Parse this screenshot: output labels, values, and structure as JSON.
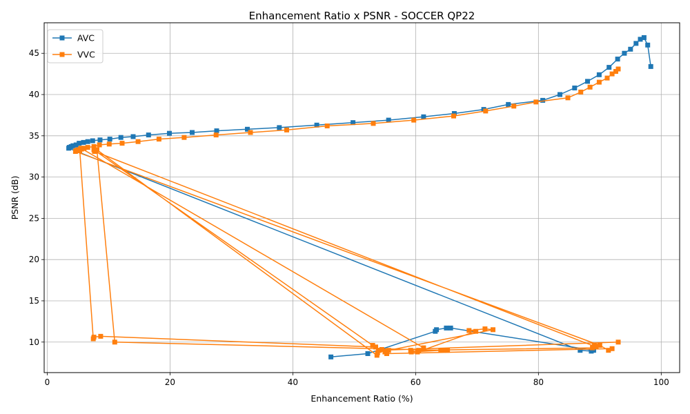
{
  "chart_data": {
    "type": "line",
    "title": "Enhancement Ratio x PSNR - SOCCER QP22",
    "xlabel": "Enhancement Ratio (%)",
    "ylabel": "PSNR (dB)",
    "xlim": [
      -0.5,
      103
    ],
    "ylim": [
      6.3,
      48.7
    ],
    "xticks": [
      0,
      20,
      40,
      60,
      80,
      100
    ],
    "yticks": [
      10,
      15,
      20,
      25,
      30,
      35,
      40,
      45
    ],
    "grid": true,
    "legend_position": "top-left",
    "marker": "square",
    "series": [
      {
        "name": "AVC",
        "color": "#1f77b4",
        "points": [
          [
            98.3,
            43.4
          ],
          [
            97.8,
            46.0
          ],
          [
            97.2,
            46.9
          ],
          [
            96.6,
            46.7
          ],
          [
            95.9,
            46.2
          ],
          [
            95.0,
            45.5
          ],
          [
            94.0,
            45.0
          ],
          [
            92.9,
            44.3
          ],
          [
            91.5,
            43.3
          ],
          [
            89.9,
            42.4
          ],
          [
            88.0,
            41.6
          ],
          [
            85.9,
            40.8
          ],
          [
            83.5,
            40.0
          ],
          [
            80.7,
            39.3
          ],
          [
            75.1,
            38.8
          ],
          [
            71.1,
            38.2
          ],
          [
            66.3,
            37.7
          ],
          [
            61.3,
            37.3
          ],
          [
            55.6,
            36.9
          ],
          [
            49.8,
            36.6
          ],
          [
            43.9,
            36.3
          ],
          [
            37.8,
            36.0
          ],
          [
            32.6,
            35.8
          ],
          [
            27.6,
            35.6
          ],
          [
            23.6,
            35.4
          ],
          [
            19.9,
            35.3
          ],
          [
            16.5,
            35.1
          ],
          [
            14.0,
            34.9
          ],
          [
            12.0,
            34.8
          ],
          [
            10.2,
            34.6
          ],
          [
            8.6,
            34.5
          ],
          [
            7.4,
            34.4
          ],
          [
            6.6,
            34.3
          ],
          [
            5.9,
            34.2
          ],
          [
            5.2,
            34.1
          ],
          [
            4.7,
            33.9
          ],
          [
            4.2,
            33.8
          ],
          [
            3.9,
            33.7
          ],
          [
            3.6,
            33.6
          ],
          [
            3.5,
            33.5
          ],
          [
            86.8,
            9.0
          ],
          [
            88.6,
            8.9
          ],
          [
            89.0,
            9.0
          ],
          [
            65.7,
            11.7
          ],
          [
            65.0,
            11.7
          ],
          [
            63.4,
            11.5
          ],
          [
            63.2,
            11.3
          ],
          [
            52.2,
            8.6
          ],
          [
            46.2,
            8.2
          ]
        ]
      },
      {
        "name": "VVC",
        "color": "#ff7f0e",
        "points": [
          [
            93.0,
            43.1
          ],
          [
            92.6,
            42.8
          ],
          [
            92.0,
            42.5
          ],
          [
            91.2,
            42.0
          ],
          [
            89.9,
            41.5
          ],
          [
            88.4,
            40.9
          ],
          [
            86.9,
            40.3
          ],
          [
            84.8,
            39.6
          ],
          [
            79.6,
            39.1
          ],
          [
            76.0,
            38.6
          ],
          [
            71.4,
            38.0
          ],
          [
            66.2,
            37.4
          ],
          [
            59.7,
            36.9
          ],
          [
            53.1,
            36.5
          ],
          [
            45.6,
            36.2
          ],
          [
            39.0,
            35.7
          ],
          [
            33.1,
            35.4
          ],
          [
            27.5,
            35.1
          ],
          [
            22.3,
            34.8
          ],
          [
            18.2,
            34.6
          ],
          [
            14.8,
            34.3
          ],
          [
            12.2,
            34.1
          ],
          [
            10.1,
            34.0
          ],
          [
            8.5,
            33.9
          ],
          [
            7.6,
            33.7
          ],
          [
            6.6,
            33.6
          ],
          [
            6.0,
            33.5
          ],
          [
            5.4,
            33.4
          ],
          [
            5.0,
            33.3
          ],
          [
            4.7,
            33.2
          ],
          [
            4.6,
            33.1
          ],
          [
            90.0,
            9.6
          ],
          [
            91.4,
            9.0
          ],
          [
            92.0,
            9.2
          ],
          [
            55.3,
            8.6
          ],
          [
            55.0,
            8.8
          ],
          [
            54.1,
            9.0
          ],
          [
            53.0,
            9.6
          ],
          [
            7.6,
            33.3
          ],
          [
            7.7,
            33.1
          ],
          [
            89.4,
            9.4
          ],
          [
            89.1,
            9.6
          ],
          [
            88.8,
            9.3
          ],
          [
            60.5,
            9.0
          ],
          [
            61.3,
            9.3
          ],
          [
            5.5,
            33.5
          ],
          [
            5.6,
            33.4
          ],
          [
            5.3,
            33.2
          ],
          [
            7.5,
            10.4
          ],
          [
            7.6,
            10.6
          ],
          [
            8.7,
            10.7
          ],
          [
            53.5,
            9.4
          ],
          [
            53.8,
            8.7
          ],
          [
            53.7,
            8.4
          ],
          [
            8.1,
            33.3
          ],
          [
            11.0,
            10.0
          ],
          [
            64.6,
            9.0
          ],
          [
            65.2,
            9.0
          ],
          [
            64.1,
            9.0
          ],
          [
            59.3,
            8.8
          ],
          [
            59.2,
            9.0
          ],
          [
            60.3,
            8.8
          ],
          [
            69.8,
            11.3
          ],
          [
            68.7,
            11.4
          ],
          [
            71.3,
            11.6
          ],
          [
            72.6,
            11.5
          ],
          [
            55.6,
            9.0
          ],
          [
            54.5,
            9.1
          ],
          [
            54.0,
            9.0
          ],
          [
            93.0,
            10.0
          ]
        ]
      }
    ]
  }
}
